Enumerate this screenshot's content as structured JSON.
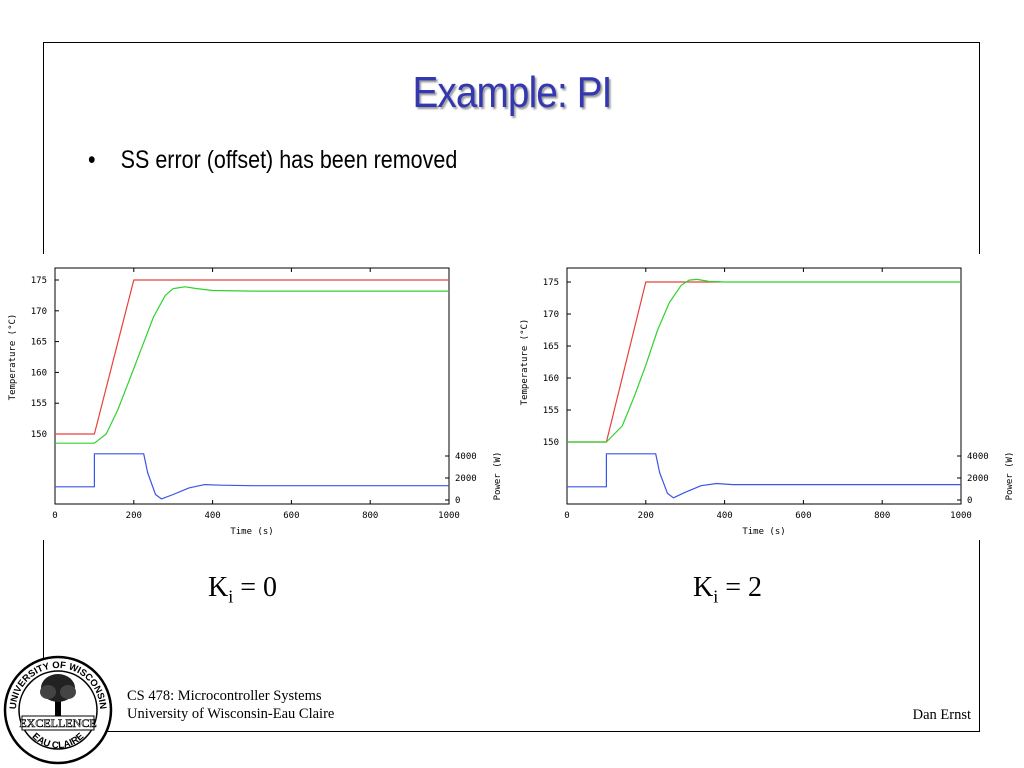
{
  "slide": {
    "title": "Example: PI",
    "bullet": "SS error (offset) has been removed",
    "labels": [
      {
        "k": "K",
        "sub": "i",
        "rest": " = 0"
      },
      {
        "k": "K",
        "sub": "i",
        "rest": " = 2"
      }
    ],
    "footer": {
      "course": "CS 478: Microcontroller Systems",
      "university": "University of Wisconsin-Eau Claire",
      "author": "Dan Ernst"
    },
    "seal": {
      "top_text": "UNIVERSITY OF WISCONSIN",
      "middle_text": "EXCELLENCE",
      "bottom_text": "EAU CLAIRE"
    }
  },
  "colors": {
    "title": "#3338b0",
    "setpoint": "#e8403a",
    "temperature": "#2fd12f",
    "power": "#3b55e6"
  },
  "chart_data": [
    {
      "type": "line",
      "xlabel": "Time (s)",
      "ylabel": "Temperature (°C)",
      "ylabel2": "Power (W)",
      "xlim": [
        0,
        1000
      ],
      "ylim": [
        146.5,
        176.5
      ],
      "y2lim": [
        0,
        4000
      ],
      "xticks": [
        0,
        200,
        400,
        600,
        800,
        1000
      ],
      "yticks": [
        150,
        155,
        160,
        165,
        170,
        175
      ],
      "y2ticks": [
        0,
        2000,
        4000
      ],
      "series": [
        {
          "key": "setpoint",
          "axis": "y",
          "x": [
            0,
            100,
            200,
            1000
          ],
          "y": [
            150,
            150,
            175,
            175
          ]
        },
        {
          "key": "temperature",
          "axis": "y",
          "x": [
            0,
            100,
            130,
            160,
            190,
            220,
            250,
            280,
            300,
            330,
            360,
            400,
            500,
            1000
          ],
          "y": [
            148.5,
            148.5,
            150,
            154,
            159,
            164,
            169,
            172.5,
            173.6,
            173.9,
            173.6,
            173.3,
            173.2,
            173.2
          ]
        },
        {
          "key": "power",
          "axis": "y2",
          "x": [
            0,
            100,
            100,
            225,
            235,
            255,
            270,
            300,
            340,
            380,
            420,
            500,
            1000
          ],
          "y": [
            1200,
            1200,
            4200,
            4200,
            2500,
            500,
            100,
            500,
            1100,
            1400,
            1350,
            1300,
            1300
          ]
        }
      ]
    },
    {
      "type": "line",
      "xlabel": "Time (s)",
      "ylabel": "Temperature (°C)",
      "ylabel2": "Power (W)",
      "xlim": [
        0,
        1000
      ],
      "ylim": [
        146.5,
        176.5
      ],
      "y2lim": [
        0,
        4000
      ],
      "xticks": [
        0,
        200,
        400,
        600,
        800,
        1000
      ],
      "yticks": [
        150,
        155,
        160,
        165,
        170,
        175
      ],
      "y2ticks": [
        0,
        2000,
        4000
      ],
      "series": [
        {
          "key": "setpoint",
          "axis": "y",
          "x": [
            0,
            100,
            200,
            390
          ],
          "y": [
            150,
            150,
            175,
            175
          ]
        },
        {
          "key": "temperature",
          "axis": "y",
          "x": [
            0,
            100,
            140,
            170,
            200,
            230,
            260,
            290,
            310,
            330,
            360,
            400,
            1000
          ],
          "y": [
            150,
            150,
            152.5,
            157,
            162,
            167.5,
            171.8,
            174.5,
            175.3,
            175.4,
            175.1,
            175,
            175
          ]
        },
        {
          "key": "power",
          "axis": "y2",
          "x": [
            0,
            100,
            100,
            225,
            235,
            255,
            270,
            300,
            340,
            380,
            420,
            500,
            1000
          ],
          "y": [
            1200,
            1200,
            4200,
            4200,
            2500,
            600,
            200,
            700,
            1300,
            1500,
            1400,
            1400,
            1400
          ]
        }
      ]
    }
  ]
}
